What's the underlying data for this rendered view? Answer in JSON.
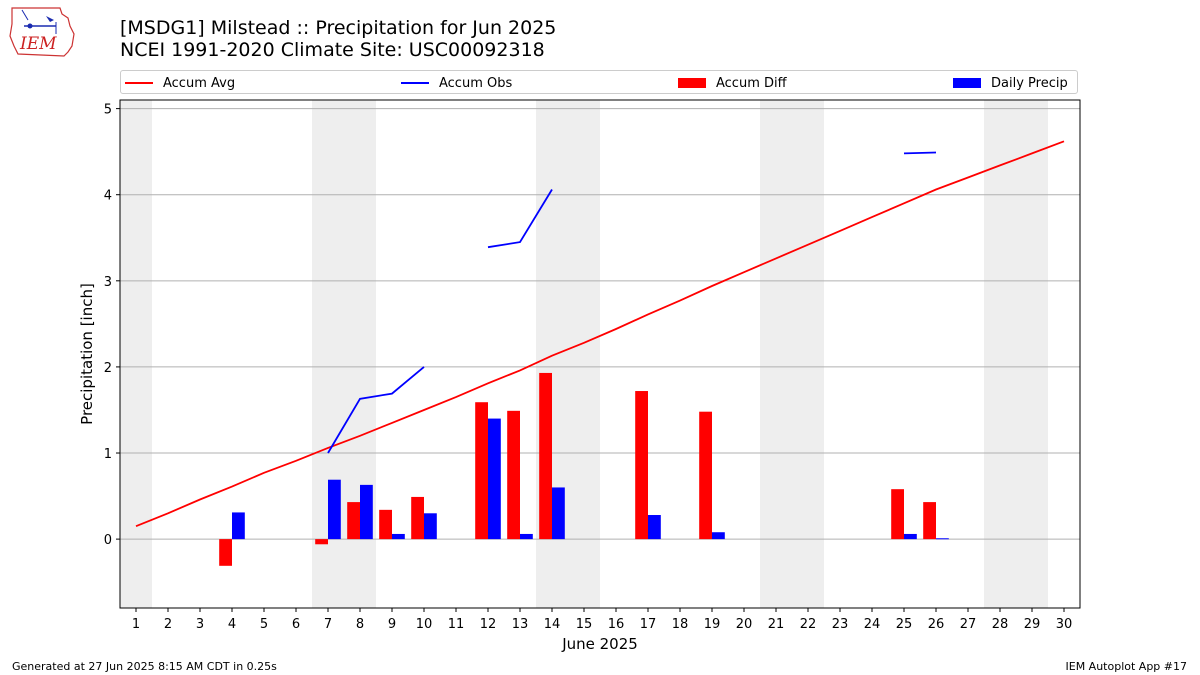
{
  "logo": {
    "text": "IEM",
    "icon": "iem-iowa-logo-icon"
  },
  "titles": {
    "line1": "[MSDG1] Milstead :: Precipitation for Jun 2025",
    "line2": "NCEI 1991-2020 Climate Site: USC00092318"
  },
  "footer": {
    "left": "Generated at 27 Jun 2025 8:15 AM CDT in 0.25s",
    "right": "IEM Autoplot App #17"
  },
  "colors": {
    "avg": "#ff0000",
    "obs": "#0000ff",
    "diff": "#ff0000",
    "daily": "#0000ff",
    "weekend": "#eeeeee",
    "grid": "#b0b0b0"
  },
  "chart_data": {
    "type": "bar",
    "xlabel": "June 2025",
    "ylabel": "Precipitation [inch]",
    "ylim": [
      -0.8,
      5.1
    ],
    "xlim": [
      0.5,
      30.5
    ],
    "y_ticks": [
      0,
      1,
      2,
      3,
      4,
      5
    ],
    "x_ticks": [
      1,
      2,
      3,
      4,
      5,
      6,
      7,
      8,
      9,
      10,
      11,
      12,
      13,
      14,
      15,
      16,
      17,
      18,
      19,
      20,
      21,
      22,
      23,
      24,
      25,
      26,
      27,
      28,
      29,
      30
    ],
    "grid": "horizontal",
    "weekend_days": [
      1,
      7,
      8,
      14,
      15,
      21,
      22,
      28,
      29
    ],
    "legend_position": "top",
    "legend": [
      {
        "label": "Accum Avg",
        "kind": "line",
        "color": "#ff0000"
      },
      {
        "label": "Accum Obs",
        "kind": "line",
        "color": "#0000ff"
      },
      {
        "label": "Accum Diff",
        "kind": "bar",
        "color": "#ff0000"
      },
      {
        "label": "Daily Precip",
        "kind": "bar",
        "color": "#0000ff"
      }
    ],
    "accum_avg": {
      "days": [
        1,
        2,
        3,
        4,
        5,
        6,
        7,
        8,
        9,
        10,
        11,
        12,
        13,
        14,
        15,
        16,
        17,
        18,
        19,
        20,
        21,
        22,
        23,
        24,
        25,
        26,
        27,
        28,
        29,
        30
      ],
      "values": [
        0.15,
        0.3,
        0.46,
        0.61,
        0.77,
        0.91,
        1.06,
        1.2,
        1.35,
        1.5,
        1.65,
        1.81,
        1.96,
        2.13,
        2.28,
        2.44,
        2.61,
        2.77,
        2.94,
        3.1,
        3.26,
        3.42,
        3.58,
        3.74,
        3.9,
        4.06,
        4.2,
        4.34,
        4.48,
        4.62
      ]
    },
    "accum_obs": [
      {
        "days": [
          7,
          8,
          9,
          10
        ],
        "values": [
          1.0,
          1.63,
          1.69,
          2.0
        ]
      },
      {
        "days": [
          12,
          13,
          14
        ],
        "values": [
          3.39,
          3.45,
          4.06
        ]
      },
      {
        "days": [
          25,
          26
        ],
        "values": [
          4.48,
          4.49
        ]
      }
    ],
    "accum_diff": {
      "days": [
        4,
        7,
        8,
        9,
        10,
        12,
        13,
        14,
        17,
        19,
        25,
        26
      ],
      "values": [
        -0.31,
        -0.06,
        0.43,
        0.34,
        0.49,
        1.59,
        1.49,
        1.93,
        1.72,
        1.48,
        0.58,
        0.43
      ]
    },
    "daily_precip": {
      "days": [
        4,
        7,
        8,
        9,
        10,
        12,
        13,
        14,
        17,
        19,
        25,
        26
      ],
      "values": [
        0.31,
        0.69,
        0.63,
        0.06,
        0.3,
        1.4,
        0.06,
        0.6,
        0.28,
        0.08,
        0.06,
        0.01
      ]
    }
  }
}
